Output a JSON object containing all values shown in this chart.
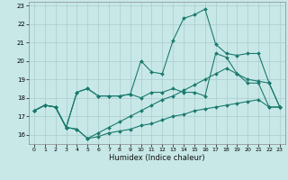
{
  "xlabel": "Humidex (Indice chaleur)",
  "xlim": [
    -0.5,
    23.5
  ],
  "ylim": [
    15.5,
    23.2
  ],
  "yticks": [
    16,
    17,
    18,
    19,
    20,
    21,
    22,
    23
  ],
  "xticks": [
    0,
    1,
    2,
    3,
    4,
    5,
    6,
    7,
    8,
    9,
    10,
    11,
    12,
    13,
    14,
    15,
    16,
    17,
    18,
    19,
    20,
    21,
    22,
    23
  ],
  "background_color": "#c8e8e8",
  "grid_color": "#aacccc",
  "line_color": "#1a7a6e",
  "series": [
    [
      17.3,
      17.6,
      17.5,
      16.4,
      16.3,
      15.8,
      15.9,
      16.1,
      16.2,
      16.3,
      16.5,
      16.6,
      16.8,
      17.0,
      17.1,
      17.3,
      17.4,
      17.5,
      17.6,
      17.7,
      17.8,
      17.9,
      17.5,
      17.5
    ],
    [
      17.3,
      17.6,
      17.5,
      16.4,
      16.3,
      15.8,
      16.1,
      16.4,
      16.7,
      17.0,
      17.3,
      17.6,
      17.9,
      18.1,
      18.4,
      18.7,
      19.0,
      19.3,
      19.6,
      19.3,
      18.8,
      18.8,
      17.5,
      17.5
    ],
    [
      17.3,
      17.6,
      17.5,
      16.4,
      18.3,
      18.5,
      18.1,
      18.1,
      18.1,
      18.2,
      18.0,
      18.3,
      18.3,
      18.5,
      18.3,
      18.3,
      18.1,
      20.4,
      20.2,
      19.3,
      19.0,
      18.9,
      18.8,
      17.5
    ],
    [
      17.3,
      17.6,
      17.5,
      16.4,
      18.3,
      18.5,
      18.1,
      18.1,
      18.1,
      18.2,
      20.0,
      19.4,
      19.3,
      21.1,
      22.3,
      22.5,
      22.8,
      20.9,
      20.4,
      20.3,
      20.4,
      20.4,
      18.8,
      17.5
    ]
  ]
}
